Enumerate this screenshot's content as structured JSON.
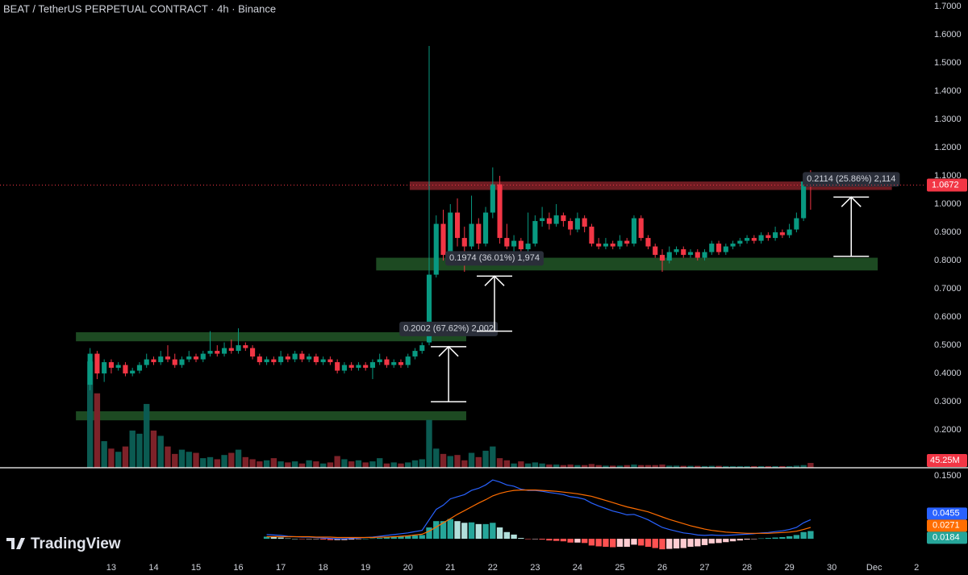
{
  "brand": "TradingView",
  "chart_data": {
    "type": "candlestick",
    "title": "BEAT / TetherUS PERPETUAL CONTRACT · 4h · Binance",
    "up_color": "#089981",
    "down_color": "#f23645",
    "x": [
      -12,
      -8,
      -4,
      0,
      4,
      8,
      12,
      16,
      20,
      24,
      28,
      32,
      36,
      40,
      44,
      48,
      52,
      56,
      60,
      64,
      68,
      72,
      76,
      80,
      84,
      88,
      92,
      96,
      100,
      104,
      108,
      112,
      116,
      120,
      124,
      128,
      132,
      136,
      140,
      144,
      148,
      152,
      156,
      160,
      164,
      168,
      172,
      176,
      180,
      184,
      188,
      192,
      196,
      200,
      204,
      208,
      212,
      216,
      220,
      224,
      228,
      232,
      236,
      240,
      244,
      248,
      252,
      256,
      260,
      264,
      268,
      272,
      276,
      280,
      284,
      288,
      292,
      296,
      300,
      304,
      308,
      312,
      316,
      320,
      324,
      328,
      332,
      336,
      340,
      344,
      348,
      352,
      356,
      360,
      364,
      368,
      372,
      376,
      380,
      384,
      388,
      392,
      396
    ],
    "ohlc": [
      [
        0.36,
        0.49,
        0.34,
        0.47
      ],
      [
        0.47,
        0.48,
        0.38,
        0.4
      ],
      [
        0.4,
        0.45,
        0.37,
        0.44
      ],
      [
        0.44,
        0.45,
        0.4,
        0.42
      ],
      [
        0.42,
        0.44,
        0.41,
        0.43
      ],
      [
        0.43,
        0.44,
        0.39,
        0.4
      ],
      [
        0.4,
        0.42,
        0.39,
        0.41
      ],
      [
        0.41,
        0.44,
        0.4,
        0.43
      ],
      [
        0.43,
        0.47,
        0.42,
        0.45
      ],
      [
        0.45,
        0.46,
        0.43,
        0.44
      ],
      [
        0.44,
        0.48,
        0.43,
        0.46
      ],
      [
        0.46,
        0.5,
        0.44,
        0.45
      ],
      [
        0.45,
        0.47,
        0.42,
        0.43
      ],
      [
        0.43,
        0.46,
        0.42,
        0.45
      ],
      [
        0.45,
        0.48,
        0.44,
        0.46
      ],
      [
        0.46,
        0.47,
        0.44,
        0.45
      ],
      [
        0.45,
        0.48,
        0.44,
        0.47
      ],
      [
        0.47,
        0.55,
        0.46,
        0.48
      ],
      [
        0.48,
        0.5,
        0.46,
        0.47
      ],
      [
        0.47,
        0.51,
        0.46,
        0.49
      ],
      [
        0.49,
        0.52,
        0.47,
        0.48
      ],
      [
        0.48,
        0.56,
        0.47,
        0.5
      ],
      [
        0.5,
        0.51,
        0.48,
        0.49
      ],
      [
        0.49,
        0.5,
        0.45,
        0.46
      ],
      [
        0.46,
        0.47,
        0.43,
        0.44
      ],
      [
        0.44,
        0.46,
        0.43,
        0.45
      ],
      [
        0.45,
        0.46,
        0.43,
        0.44
      ],
      [
        0.44,
        0.48,
        0.43,
        0.46
      ],
      [
        0.46,
        0.47,
        0.44,
        0.45
      ],
      [
        0.45,
        0.48,
        0.44,
        0.47
      ],
      [
        0.47,
        0.48,
        0.44,
        0.45
      ],
      [
        0.45,
        0.47,
        0.44,
        0.46
      ],
      [
        0.46,
        0.47,
        0.43,
        0.44
      ],
      [
        0.44,
        0.46,
        0.43,
        0.45
      ],
      [
        0.45,
        0.46,
        0.43,
        0.44
      ],
      [
        0.44,
        0.45,
        0.4,
        0.41
      ],
      [
        0.41,
        0.44,
        0.4,
        0.43
      ],
      [
        0.43,
        0.44,
        0.41,
        0.42
      ],
      [
        0.42,
        0.44,
        0.41,
        0.43
      ],
      [
        0.43,
        0.44,
        0.41,
        0.42
      ],
      [
        0.42,
        0.45,
        0.38,
        0.44
      ],
      [
        0.44,
        0.47,
        0.43,
        0.45
      ],
      [
        0.45,
        0.46,
        0.42,
        0.43
      ],
      [
        0.43,
        0.45,
        0.42,
        0.44
      ],
      [
        0.44,
        0.45,
        0.42,
        0.43
      ],
      [
        0.43,
        0.47,
        0.42,
        0.46
      ],
      [
        0.46,
        0.49,
        0.45,
        0.48
      ],
      [
        0.48,
        0.51,
        0.47,
        0.5
      ],
      [
        0.51,
        1.56,
        0.5,
        0.75
      ],
      [
        0.75,
        0.96,
        0.74,
        0.93
      ],
      [
        0.93,
        0.98,
        0.8,
        0.82
      ],
      [
        0.82,
        1.0,
        0.8,
        0.97
      ],
      [
        0.97,
        1.02,
        0.85,
        0.88
      ],
      [
        0.88,
        0.92,
        0.76,
        0.85
      ],
      [
        0.85,
        1.03,
        0.84,
        0.93
      ],
      [
        0.93,
        0.95,
        0.84,
        0.86
      ],
      [
        0.86,
        0.99,
        0.85,
        0.97
      ],
      [
        0.97,
        1.13,
        0.95,
        1.07
      ],
      [
        1.07,
        1.1,
        0.86,
        0.88
      ],
      [
        0.88,
        0.93,
        0.84,
        0.85
      ],
      [
        0.85,
        0.89,
        0.83,
        0.87
      ],
      [
        0.87,
        0.88,
        0.82,
        0.84
      ],
      [
        0.84,
        0.97,
        0.83,
        0.86
      ],
      [
        0.86,
        0.96,
        0.85,
        0.94
      ],
      [
        0.94,
        0.99,
        0.92,
        0.95
      ],
      [
        0.95,
        0.97,
        0.91,
        0.93
      ],
      [
        0.93,
        1.0,
        0.92,
        0.96
      ],
      [
        0.96,
        0.97,
        0.92,
        0.94
      ],
      [
        0.94,
        0.95,
        0.89,
        0.91
      ],
      [
        0.91,
        0.97,
        0.9,
        0.95
      ],
      [
        0.95,
        0.96,
        0.9,
        0.92
      ],
      [
        0.92,
        0.93,
        0.85,
        0.86
      ],
      [
        0.86,
        0.88,
        0.84,
        0.85
      ],
      [
        0.85,
        0.88,
        0.84,
        0.86
      ],
      [
        0.86,
        0.87,
        0.84,
        0.85
      ],
      [
        0.85,
        0.89,
        0.84,
        0.87
      ],
      [
        0.87,
        0.88,
        0.85,
        0.86
      ],
      [
        0.86,
        0.96,
        0.85,
        0.95
      ],
      [
        0.95,
        0.96,
        0.87,
        0.88
      ],
      [
        0.88,
        0.89,
        0.84,
        0.85
      ],
      [
        0.85,
        0.86,
        0.81,
        0.82
      ],
      [
        0.82,
        0.84,
        0.76,
        0.8
      ],
      [
        0.8,
        0.85,
        0.79,
        0.83
      ],
      [
        0.83,
        0.85,
        0.82,
        0.84
      ],
      [
        0.84,
        0.85,
        0.81,
        0.82
      ],
      [
        0.82,
        0.84,
        0.81,
        0.83
      ],
      [
        0.83,
        0.84,
        0.8,
        0.81
      ],
      [
        0.81,
        0.84,
        0.8,
        0.83
      ],
      [
        0.83,
        0.87,
        0.82,
        0.86
      ],
      [
        0.86,
        0.87,
        0.82,
        0.83
      ],
      [
        0.83,
        0.86,
        0.82,
        0.85
      ],
      [
        0.85,
        0.87,
        0.84,
        0.86
      ],
      [
        0.86,
        0.88,
        0.85,
        0.87
      ],
      [
        0.87,
        0.89,
        0.86,
        0.88
      ],
      [
        0.88,
        0.89,
        0.86,
        0.87
      ],
      [
        0.87,
        0.9,
        0.86,
        0.89
      ],
      [
        0.89,
        0.9,
        0.87,
        0.88
      ],
      [
        0.88,
        0.92,
        0.87,
        0.9
      ],
      [
        0.9,
        0.91,
        0.88,
        0.89
      ],
      [
        0.89,
        0.93,
        0.88,
        0.91
      ],
      [
        0.91,
        0.97,
        0.9,
        0.95
      ],
      [
        0.95,
        1.1,
        0.94,
        1.08
      ],
      [
        1.08,
        1.12,
        0.98,
        1.0672
      ]
    ],
    "xlim": [
      -63,
      460
    ],
    "xticks": [
      {
        "value": 0,
        "label": "13"
      },
      {
        "value": 24,
        "label": "14"
      },
      {
        "value": 48,
        "label": "15"
      },
      {
        "value": 72,
        "label": "16"
      },
      {
        "value": 96,
        "label": "17"
      },
      {
        "value": 120,
        "label": "18"
      },
      {
        "value": 144,
        "label": "19"
      },
      {
        "value": 168,
        "label": "20"
      },
      {
        "value": 192,
        "label": "21"
      },
      {
        "value": 216,
        "label": "22"
      },
      {
        "value": 240,
        "label": "23"
      },
      {
        "value": 264,
        "label": "24"
      },
      {
        "value": 288,
        "label": "25"
      },
      {
        "value": 312,
        "label": "26"
      },
      {
        "value": 336,
        "label": "27"
      },
      {
        "value": 360,
        "label": "28"
      },
      {
        "value": 384,
        "label": "29"
      },
      {
        "value": 408,
        "label": "30"
      },
      {
        "value": 432,
        "label": "Dec"
      },
      {
        "value": 456,
        "label": "2"
      }
    ],
    "ylim": [
      0.066,
      1.723
    ],
    "yticks": [
      {
        "value": 0.2,
        "label": "0.2000"
      },
      {
        "value": 0.3,
        "label": "0.3000"
      },
      {
        "value": 0.4,
        "label": "0.4000"
      },
      {
        "value": 0.5,
        "label": "0.5000"
      },
      {
        "value": 0.6,
        "label": "0.6000"
      },
      {
        "value": 0.7,
        "label": "0.7000"
      },
      {
        "value": 0.8,
        "label": "0.8000"
      },
      {
        "value": 0.9,
        "label": "0.9000"
      },
      {
        "value": 1.0,
        "label": "1.0000"
      },
      {
        "value": 1.1,
        "label": "1.1000"
      },
      {
        "value": 1.2,
        "label": "1.2000"
      },
      {
        "value": 1.3,
        "label": "1.3000"
      },
      {
        "value": 1.4,
        "label": "1.4000"
      },
      {
        "value": 1.5,
        "label": "1.5000"
      },
      {
        "value": 1.6,
        "label": "1.6000"
      },
      {
        "value": 1.7,
        "label": "1.7000"
      }
    ],
    "last_price": 1.0672,
    "volume": {
      "lim": [
        0,
        1100
      ],
      "last_label": "45.25M",
      "values": [
        1000,
        700,
        250,
        180,
        150,
        200,
        350,
        320,
        600,
        350,
        300,
        200,
        130,
        170,
        150,
        140,
        90,
        100,
        80,
        120,
        140,
        170,
        100,
        80,
        60,
        70,
        90,
        60,
        50,
        60,
        40,
        70,
        60,
        40,
        50,
        110,
        80,
        60,
        70,
        50,
        60,
        90,
        40,
        50,
        40,
        50,
        70,
        80,
        450,
        180,
        130,
        110,
        120,
        70,
        140,
        100,
        160,
        200,
        90,
        70,
        40,
        60,
        40,
        50,
        40,
        30,
        30,
        25,
        30,
        25,
        25,
        35,
        25,
        20,
        20,
        20,
        25,
        30,
        25,
        25,
        25,
        30,
        20,
        20,
        18,
        18,
        18,
        16,
        18,
        18,
        16,
        15,
        15,
        15,
        15,
        15,
        15,
        15,
        15,
        15,
        20,
        25,
        45.25
      ]
    },
    "zones": [
      {
        "x": [
          169,
          442
        ],
        "y": [
          1.05,
          1.08
        ],
        "color": "#6e1c22"
      },
      {
        "x": [
          150,
          434
        ],
        "y": [
          0.765,
          0.81
        ],
        "color": "#1d4a22"
      },
      {
        "x": [
          -20,
          201
        ],
        "y": [
          0.514,
          0.546
        ],
        "color": "#1d4a22"
      },
      {
        "x": [
          -20,
          201
        ],
        "y": [
          0.234,
          0.266
        ],
        "color": "#1d4a22"
      }
    ],
    "measures": [
      {
        "label": "0.2002 (67.62%) 2,002",
        "x": 191,
        "from": 0.3,
        "to": 0.495
      },
      {
        "label": "0.1974 (36.01%) 1,974",
        "x": 217,
        "from": 0.55,
        "to": 0.745
      },
      {
        "label": "0.2114 (25.86%) 2,114",
        "x": 419,
        "from": 0.815,
        "to": 1.025
      }
    ],
    "macd": {
      "ylim": [
        -0.042,
        0.167
      ],
      "yticks": [
        {
          "value": 0.15,
          "label": "0.1500"
        }
      ],
      "lines": [
        {
          "color": "#2962ff",
          "last": 0.0455,
          "values": [
            null,
            null,
            null,
            null,
            null,
            null,
            null,
            null,
            null,
            null,
            null,
            null,
            null,
            null,
            null,
            null,
            null,
            null,
            null,
            null,
            null,
            null,
            null,
            null,
            null,
            0.01,
            0.009,
            0.008,
            0.006,
            0.005,
            0.004,
            0.004,
            0.003,
            0.002,
            0.001,
            0.0,
            0.0,
            0.001,
            0.002,
            0.003,
            0.004,
            0.006,
            0.008,
            0.01,
            0.012,
            0.014,
            0.017,
            0.02,
            0.045,
            0.07,
            0.08,
            0.095,
            0.1,
            0.105,
            0.115,
            0.12,
            0.128,
            0.14,
            0.135,
            0.128,
            0.125,
            0.118,
            0.115,
            0.115,
            0.113,
            0.11,
            0.108,
            0.105,
            0.1,
            0.098,
            0.094,
            0.085,
            0.078,
            0.072,
            0.066,
            0.062,
            0.057,
            0.058,
            0.052,
            0.045,
            0.036,
            0.027,
            0.022,
            0.018,
            0.014,
            0.012,
            0.009,
            0.008,
            0.009,
            0.008,
            0.008,
            0.009,
            0.01,
            0.011,
            0.012,
            0.014,
            0.015,
            0.017,
            0.019,
            0.022,
            0.027,
            0.038,
            0.0455
          ]
        },
        {
          "color": "#ff6d00",
          "last": 0.0271,
          "values": [
            null,
            null,
            null,
            null,
            null,
            null,
            null,
            null,
            null,
            null,
            null,
            null,
            null,
            null,
            null,
            null,
            null,
            null,
            null,
            null,
            null,
            null,
            null,
            null,
            null,
            0.005,
            0.005,
            0.005,
            0.005,
            0.005,
            0.005,
            0.005,
            0.004,
            0.004,
            0.004,
            0.003,
            0.003,
            0.003,
            0.003,
            0.003,
            0.003,
            0.004,
            0.004,
            0.005,
            0.006,
            0.007,
            0.009,
            0.011,
            0.018,
            0.028,
            0.038,
            0.048,
            0.058,
            0.067,
            0.076,
            0.085,
            0.093,
            0.102,
            0.108,
            0.112,
            0.115,
            0.116,
            0.116,
            0.116,
            0.115,
            0.114,
            0.113,
            0.111,
            0.109,
            0.107,
            0.104,
            0.101,
            0.096,
            0.091,
            0.086,
            0.081,
            0.076,
            0.072,
            0.068,
            0.064,
            0.058,
            0.052,
            0.046,
            0.041,
            0.036,
            0.031,
            0.027,
            0.023,
            0.02,
            0.018,
            0.016,
            0.015,
            0.014,
            0.013,
            0.013,
            0.013,
            0.013,
            0.014,
            0.015,
            0.016,
            0.018,
            0.022,
            0.0271
          ]
        }
      ],
      "histogram": {
        "color": "#26a69a",
        "last": 0.0184,
        "values": [
          null,
          null,
          null,
          null,
          null,
          null,
          null,
          null,
          null,
          null,
          null,
          null,
          null,
          null,
          null,
          null,
          null,
          null,
          null,
          null,
          null,
          null,
          null,
          null,
          null,
          0.005,
          0.004,
          0.003,
          0.001,
          0,
          -0.001,
          -0.001,
          -0.001,
          -0.002,
          -0.003,
          -0.003,
          -0.003,
          -0.002,
          -0.001,
          0,
          0.001,
          0.002,
          0.004,
          0.005,
          0.006,
          0.007,
          0.008,
          0.009,
          0.027,
          0.042,
          0.042,
          0.047,
          0.042,
          0.038,
          0.039,
          0.035,
          0.035,
          0.038,
          0.027,
          0.016,
          0.01,
          0.002,
          -0.001,
          -0.001,
          -0.002,
          -0.004,
          -0.005,
          -0.006,
          -0.009,
          -0.009,
          -0.01,
          -0.016,
          -0.018,
          -0.019,
          -0.02,
          -0.019,
          -0.019,
          -0.014,
          -0.016,
          -0.019,
          -0.022,
          -0.025,
          -0.024,
          -0.023,
          -0.022,
          -0.019,
          -0.018,
          -0.015,
          -0.011,
          -0.01,
          -0.008,
          -0.006,
          -0.004,
          -0.002,
          -0.001,
          0.001,
          0.002,
          0.003,
          0.004,
          0.006,
          0.009,
          0.016,
          0.0184
        ]
      }
    }
  }
}
